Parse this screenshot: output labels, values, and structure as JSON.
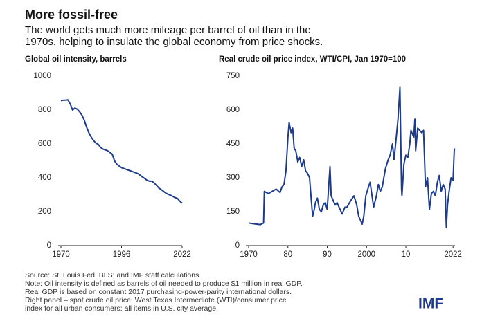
{
  "header": {
    "title": "More fossil-free",
    "subtitle": [
      "The world gets much more mileage per barrel of oil than in the",
      "1970s, helping to insulate the global economy from price shocks."
    ]
  },
  "chart_data": [
    {
      "type": "line",
      "title": "Global oil intensity, barrels",
      "x": [
        1970,
        1971,
        1972,
        1973,
        1974,
        1975,
        1976,
        1977,
        1978,
        1979,
        1980,
        1981,
        1982,
        1983,
        1984,
        1985,
        1986,
        1987,
        1988,
        1989,
        1990,
        1991,
        1992,
        1993,
        1994,
        1995,
        1996,
        1997,
        1998,
        1999,
        2000,
        2001,
        2002,
        2003,
        2004,
        2005,
        2006,
        2007,
        2008,
        2009,
        2010,
        2011,
        2012,
        2013,
        2014,
        2015,
        2016,
        2017,
        2018,
        2019,
        2020,
        2021,
        2022
      ],
      "series": [
        {
          "name": "Global oil intensity",
          "color": "#1c3b8e",
          "values": [
            855,
            858,
            858,
            860,
            835,
            800,
            812,
            805,
            790,
            770,
            740,
            700,
            665,
            640,
            620,
            605,
            598,
            580,
            570,
            565,
            560,
            550,
            540,
            500,
            480,
            470,
            460,
            455,
            450,
            445,
            440,
            435,
            430,
            425,
            415,
            405,
            395,
            385,
            380,
            380,
            370,
            355,
            340,
            330,
            320,
            310,
            303,
            297,
            290,
            283,
            278,
            262,
            250
          ]
        }
      ],
      "xlim": [
        1970,
        2022
      ],
      "xticks": [
        1970,
        1996,
        2022
      ],
      "ylim": [
        0,
        1000
      ],
      "yticks": [
        0,
        200,
        400,
        600,
        800,
        1000
      ]
    },
    {
      "type": "line",
      "title": "Real crude oil price index, WTI/CPI, Jan 1970=100",
      "x": [
        1970,
        1971,
        1972,
        1973,
        1973.8,
        1974,
        1975,
        1976,
        1977,
        1978,
        1978.5,
        1979,
        1979.5,
        1980,
        1980.3,
        1980.8,
        1981.2,
        1981.6,
        1982,
        1982.5,
        1983,
        1983.5,
        1984,
        1984.5,
        1985,
        1985.5,
        1986,
        1986.3,
        1986.7,
        1987,
        1987.5,
        1988,
        1988.5,
        1989,
        1989.5,
        1990,
        1990.7,
        1991,
        1991.5,
        1992,
        1992.5,
        1993,
        1993.8,
        1994.5,
        1995,
        1996,
        1996.8,
        1997.5,
        1998,
        1998.9,
        1999.3,
        1999.8,
        2000.5,
        2000.9,
        2001.8,
        2002.5,
        2003,
        2003.5,
        2004,
        2004.8,
        2005.5,
        2006,
        2006.6,
        2007,
        2007.5,
        2008,
        2008.5,
        2008.9,
        2009,
        2009.5,
        2010,
        2010.5,
        2011,
        2011.3,
        2012,
        2012.3,
        2012.5,
        2013,
        2013.5,
        2014,
        2014.5,
        2015,
        2015.5,
        2016,
        2016.5,
        2017,
        2017.5,
        2018,
        2018.5,
        2019,
        2019.5,
        2020,
        2020.3,
        2020.6,
        2021,
        2021.5,
        2022,
        2022.3,
        2022.4
      ],
      "series": [
        {
          "name": "Real crude oil price index",
          "color": "#1c3b8e",
          "values": [
            100,
            97,
            95,
            93,
            100,
            240,
            230,
            240,
            250,
            235,
            260,
            270,
            330,
            480,
            545,
            500,
            520,
            430,
            420,
            370,
            390,
            350,
            380,
            330,
            320,
            300,
            190,
            130,
            160,
            190,
            210,
            160,
            150,
            180,
            190,
            160,
            350,
            220,
            200,
            180,
            190,
            170,
            140,
            170,
            170,
            200,
            220,
            180,
            130,
            95,
            130,
            220,
            260,
            280,
            170,
            220,
            270,
            240,
            260,
            340,
            380,
            400,
            450,
            380,
            470,
            560,
            700,
            250,
            220,
            360,
            400,
            390,
            450,
            510,
            480,
            560,
            420,
            520,
            510,
            500,
            510,
            260,
            300,
            160,
            230,
            240,
            220,
            280,
            310,
            240,
            270,
            250,
            80,
            180,
            240,
            300,
            290,
            420,
            430
          ]
        }
      ],
      "xlim": [
        1970,
        2022.5
      ],
      "xticks": [
        1970,
        {
          "value": 1980,
          "label": "80"
        },
        {
          "value": 1990,
          "label": "90"
        },
        2000,
        {
          "value": 2010,
          "label": "10"
        },
        2022
      ],
      "ylim": [
        0,
        750
      ],
      "yticks": [
        0,
        150,
        300,
        450,
        600,
        750
      ]
    }
  ],
  "footer": {
    "notes": [
      "Source: St. Louis Fed; BLS; and IMF staff calculations.",
      "Note: Oil intensity is defined as barrels of oil needed to produce $1 million in real GDP.",
      "Real GDP is based on constant 2017 purchasing-power-parity international dollars.",
      "Right panel – spot crude oil price: West Texas Intermediate (WTI)/consumer price",
      "index for all urban consumers: all items in U.S. city average."
    ],
    "logo": "IMF"
  }
}
